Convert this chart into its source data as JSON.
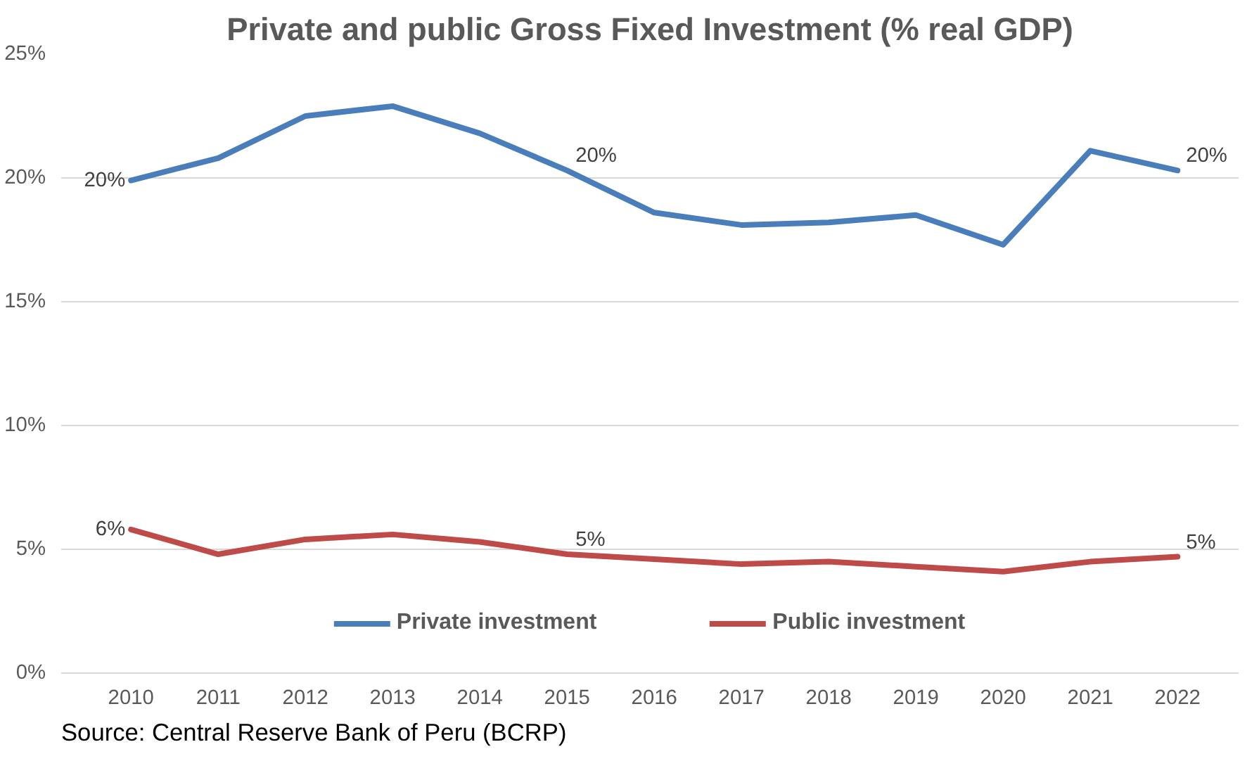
{
  "chart_data": {
    "type": "line",
    "title": "Private and public Gross Fixed Investment (% real GDP)",
    "categories": [
      "2010",
      "2011",
      "2012",
      "2013",
      "2014",
      "2015",
      "2016",
      "2017",
      "2018",
      "2019",
      "2020",
      "2021",
      "2022"
    ],
    "series": [
      {
        "name": "Private investment",
        "color": "#4a7ebb",
        "values": [
          19.9,
          20.8,
          22.5,
          22.9,
          21.8,
          20.3,
          18.6,
          18.1,
          18.2,
          18.5,
          17.3,
          21.1,
          20.3
        ],
        "value_labels": [
          "20%",
          null,
          null,
          null,
          null,
          "20%",
          null,
          null,
          null,
          null,
          null,
          null,
          "20%"
        ]
      },
      {
        "name": "Public investment",
        "color": "#be4b48",
        "values": [
          5.8,
          4.8,
          5.4,
          5.6,
          5.3,
          4.8,
          4.6,
          4.4,
          4.5,
          4.3,
          4.1,
          4.5,
          4.7
        ],
        "value_labels": [
          "6%",
          null,
          null,
          null,
          null,
          "5%",
          null,
          null,
          null,
          null,
          null,
          null,
          "5%"
        ]
      }
    ],
    "ylim": [
      0,
      25
    ],
    "yticks": [
      {
        "value": 0,
        "label": "0%"
      },
      {
        "value": 5,
        "label": "5%"
      },
      {
        "value": 10,
        "label": "10%"
      },
      {
        "value": 15,
        "label": "15%"
      },
      {
        "value": 20,
        "label": "20%"
      },
      {
        "value": 25,
        "label": "25%"
      }
    ],
    "grid": "y",
    "legend": "bottom",
    "line_style": "solid",
    "marker": "none",
    "annotations": [
      "Source: Central Reserve Bank of Peru (BCRP)"
    ]
  }
}
